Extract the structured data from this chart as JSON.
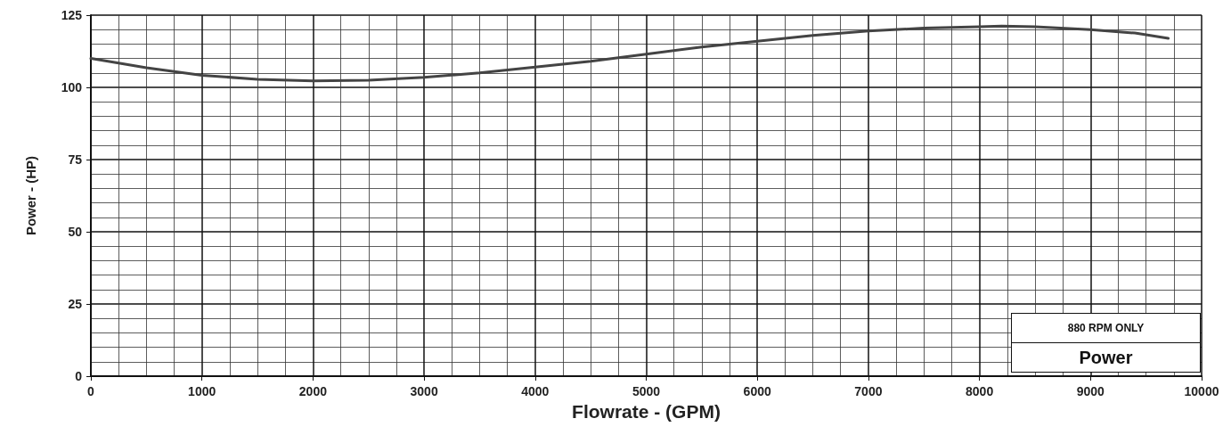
{
  "chart_data": {
    "type": "line",
    "xlabel": "Flowrate - (GPM)",
    "ylabel": "Power - (HP)",
    "annotations": [
      "880 RPM ONLY",
      "Power"
    ],
    "xlim": [
      0,
      10000
    ],
    "xticks": [
      0,
      1000,
      2000,
      3000,
      4000,
      5000,
      6000,
      7000,
      8000,
      9000,
      10000
    ],
    "ylim": [
      0,
      125
    ],
    "yticks": [
      0,
      25,
      50,
      75,
      100,
      125
    ],
    "grid": true,
    "marker": "none",
    "line_style": "solid",
    "series": [
      {
        "color": "#444444",
        "x": [
          0,
          500,
          1000,
          1500,
          2000,
          2500,
          3000,
          3500,
          4000,
          4500,
          5000,
          5500,
          6000,
          6500,
          7000,
          7500,
          8000,
          8200,
          8500,
          9000,
          9400,
          9700
        ],
        "values": [
          110,
          106.8,
          104.2,
          102.8,
          102.2,
          102.5,
          103.5,
          105,
          107,
          109,
          111.5,
          114,
          116,
          118,
          119.5,
          120.5,
          121,
          121.2,
          121,
          120,
          118.8,
          117
        ]
      }
    ]
  }
}
